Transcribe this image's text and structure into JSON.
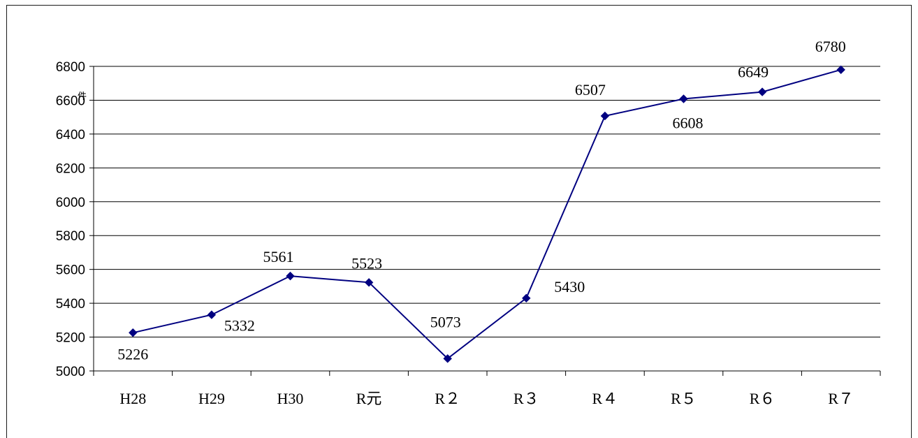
{
  "chart_data": {
    "type": "line",
    "title": "",
    "xlabel": "",
    "ylabel": "件",
    "categories": [
      "H28",
      "H29",
      "H30",
      "R元",
      "R２",
      "R３",
      "R４",
      "R５",
      "R６",
      "R７"
    ],
    "series": [
      {
        "values": [
          5226,
          5332,
          5561,
          5523,
          5073,
          5430,
          6507,
          6608,
          6649,
          6780
        ],
        "color": "#000080"
      }
    ],
    "ylim": [
      5000,
      6800
    ],
    "yticks": [
      5000,
      5200,
      5400,
      5600,
      5800,
      6000,
      6200,
      6400,
      6600,
      6800
    ],
    "grid": "horizontal",
    "marker": "diamond",
    "data_labels": true
  }
}
